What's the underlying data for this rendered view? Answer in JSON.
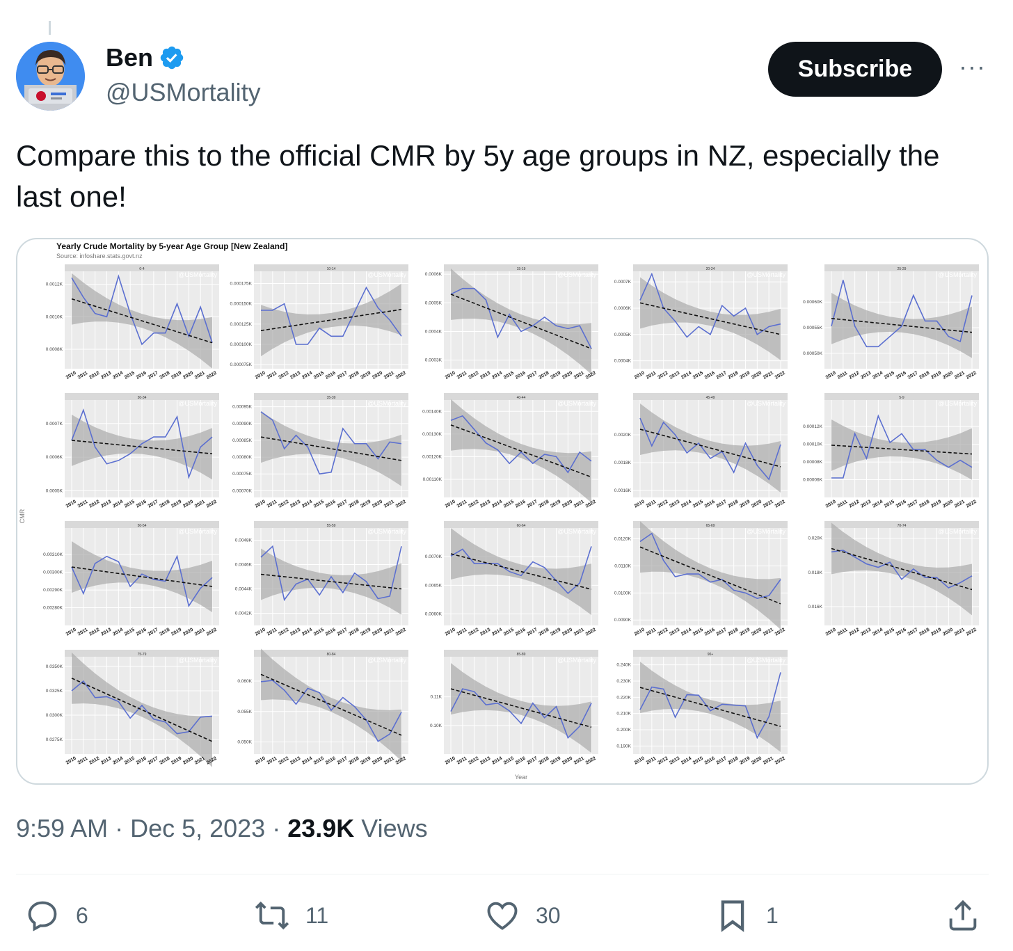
{
  "author": {
    "name": "Ben",
    "handle": "@USMortality",
    "avatar_icon": "memoji-avatar-icon",
    "verified_icon": "verified-badge-icon"
  },
  "subscribe_label": "Subscribe",
  "more_label": "···",
  "tweet_text": "Compare this to the official CMR by 5y age groups in NZ, especially the last one!",
  "media": {
    "chart_title": "Yearly Crude Mortality by 5-year Age Group [New Zealand]",
    "chart_source": "Source: infoshare.stats.govt.nz",
    "ylabel": "CMR",
    "xlabel": "Year",
    "watermark": "@USMortality"
  },
  "chart_data": {
    "type": "line",
    "title": "Yearly Crude Mortality by 5-year Age Group [New Zealand]",
    "subtitle": "Source: infoshare.stats.govt.nz",
    "xlabel": "Year",
    "ylabel": "CMR",
    "x": [
      "2010",
      "2011",
      "2012",
      "2013",
      "2014",
      "2015",
      "2016",
      "2017",
      "2018",
      "2019",
      "2020",
      "2021",
      "2022"
    ],
    "panels": [
      {
        "name": "0-4",
        "yticks": [
          "0.0008K",
          "0.0010K",
          "0.0012K"
        ],
        "ylim": [
          0.00068,
          0.00128
        ],
        "values": [
          0.00124,
          0.00112,
          0.00102,
          0.001,
          0.00125,
          0.00102,
          0.00083,
          0.0009,
          0.0009,
          0.00108,
          0.00088,
          0.00106,
          0.00084
        ],
        "trend": [
          0.00111,
          0.00084
        ]
      },
      {
        "name": "10-14",
        "yticks": [
          "0.000075K",
          "0.000100K",
          "0.000125K",
          "0.000150K",
          "0.000175K"
        ],
        "ylim": [
          7e-05,
          0.00019
        ],
        "values": [
          0.000142,
          0.000142,
          0.00015,
          0.0001,
          0.0001,
          0.00012,
          0.00011,
          0.00011,
          0.00014,
          0.00017,
          0.000145,
          0.00013,
          0.00011
        ],
        "trend": [
          0.000117,
          0.000143
        ]
      },
      {
        "name": "15-19",
        "yticks": [
          "0.0003K",
          "0.0004K",
          "0.0005K",
          "0.0006K"
        ],
        "ylim": [
          0.00027,
          0.00061
        ],
        "values": [
          0.00053,
          0.00055,
          0.00055,
          0.00051,
          0.00038,
          0.00046,
          0.0004,
          0.00042,
          0.00045,
          0.00042,
          0.00041,
          0.00042,
          0.00034
        ],
        "trend": [
          0.00053,
          0.00034
        ]
      },
      {
        "name": "20-24",
        "yticks": [
          "0.0004K",
          "0.0005K",
          "0.0006K",
          "0.0007K"
        ],
        "ylim": [
          0.00037,
          0.00074
        ],
        "values": [
          0.00063,
          0.00073,
          0.0006,
          0.00055,
          0.00049,
          0.00053,
          0.0005,
          0.00061,
          0.00057,
          0.0006,
          0.0005,
          0.00053,
          0.00054
        ],
        "trend": [
          0.00062,
          0.0005
        ]
      },
      {
        "name": "25-29",
        "yticks": [
          "0.00050K",
          "0.00055K",
          "0.00060K"
        ],
        "ylim": [
          0.00047,
          0.00066
        ],
        "values": [
          0.000553,
          0.000643,
          0.000553,
          0.000513,
          0.000513,
          0.000533,
          0.000553,
          0.000613,
          0.000563,
          0.000563,
          0.000533,
          0.000523,
          0.000613
        ],
        "trend": [
          0.000568,
          0.000541
        ]
      },
      {
        "name": "30-34",
        "yticks": [
          "0.0005K",
          "0.0006K",
          "0.0007K"
        ],
        "ylim": [
          0.00048,
          0.00077
        ],
        "values": [
          0.00065,
          0.00074,
          0.00063,
          0.00058,
          0.00059,
          0.00061,
          0.00064,
          0.00066,
          0.00066,
          0.00072,
          0.00054,
          0.00063,
          0.00066
        ],
        "trend": [
          0.00065,
          0.00061
        ]
      },
      {
        "name": "35-39",
        "yticks": [
          "0.00070K",
          "0.00075K",
          "0.00080K",
          "0.00085K",
          "0.00090K",
          "0.00095K"
        ],
        "ylim": [
          0.00068,
          0.00097
        ],
        "values": [
          0.000935,
          0.00091,
          0.000825,
          0.000865,
          0.00083,
          0.00075,
          0.000755,
          0.000885,
          0.00084,
          0.00084,
          0.000795,
          0.000845,
          0.00084
        ],
        "trend": [
          0.00086,
          0.00079
        ]
      },
      {
        "name": "40-44",
        "yticks": [
          "0.00110K",
          "0.00120K",
          "0.00130K",
          "0.00140K"
        ],
        "ylim": [
          0.00102,
          0.00145
        ],
        "values": [
          0.00136,
          0.00138,
          0.00132,
          0.00126,
          0.00123,
          0.00117,
          0.00122,
          0.00117,
          0.00121,
          0.0012,
          0.00113,
          0.00122,
          0.00118
        ],
        "trend": [
          0.00134,
          0.00111
        ]
      },
      {
        "name": "45-49",
        "yticks": [
          "0.0016K",
          "0.0018K",
          "0.0020K"
        ],
        "ylim": [
          0.00155,
          0.00225
        ],
        "values": [
          0.00212,
          0.00192,
          0.00209,
          0.002,
          0.00187,
          0.00194,
          0.00183,
          0.00188,
          0.00173,
          0.00194,
          0.00178,
          0.00168,
          0.00193
        ],
        "trend": [
          0.00204,
          0.00177
        ]
      },
      {
        "name": "5-9",
        "yticks": [
          "0.00006K",
          "0.00008K",
          "0.00010K",
          "0.00012K"
        ],
        "ylim": [
          4e-05,
          0.00015
        ],
        "values": [
          6.2e-05,
          6.2e-05,
          0.000112,
          8.4e-05,
          0.000132,
          0.000102,
          0.000112,
          9.4e-05,
          9.4e-05,
          8.2e-05,
          7.4e-05,
          8.2e-05,
          7.4e-05
        ],
        "trend": [
          9.9e-05,
          8.9e-05
        ]
      },
      {
        "name": "50-54",
        "yticks": [
          "0.00280K",
          "0.00290K",
          "0.00300K",
          "0.00310K"
        ],
        "ylim": [
          0.0027,
          0.00325
        ],
        "values": [
          0.00303,
          0.00288,
          0.00305,
          0.00309,
          0.00306,
          0.00292,
          0.00299,
          0.00296,
          0.00295,
          0.00309,
          0.00281,
          0.00291,
          0.00297
        ],
        "trend": [
          0.00303,
          0.00292
        ]
      },
      {
        "name": "55-59",
        "yticks": [
          "0.0042K",
          "0.0044K",
          "0.0046K",
          "0.0048K"
        ],
        "ylim": [
          0.0041,
          0.0049
        ],
        "values": [
          0.00466,
          0.00475,
          0.00431,
          0.00444,
          0.00448,
          0.00435,
          0.0045,
          0.00437,
          0.00453,
          0.00446,
          0.00432,
          0.00434,
          0.00475
        ],
        "trend": [
          0.00452,
          0.0044
        ]
      },
      {
        "name": "60-64",
        "yticks": [
          "0.0060K",
          "0.0065K",
          "0.0070K"
        ],
        "ylim": [
          0.0058,
          0.0075
        ],
        "values": [
          0.00701,
          0.00713,
          0.00688,
          0.00688,
          0.00688,
          0.00674,
          0.00667,
          0.00691,
          0.00681,
          0.00658,
          0.00636,
          0.00654,
          0.00718
        ],
        "trend": [
          0.00705,
          0.00643
        ]
      },
      {
        "name": "65-69",
        "yticks": [
          "0.0090K",
          "0.0100K",
          "0.0110K",
          "0.0120K"
        ],
        "ylim": [
          0.0088,
          0.0124
        ],
        "values": [
          0.0119,
          0.0122,
          0.0112,
          0.0106,
          0.0107,
          0.0107,
          0.0104,
          0.0105,
          0.0101,
          0.01,
          0.0098,
          0.0099,
          0.0105
        ],
        "trend": [
          0.0117,
          0.0096
        ]
      },
      {
        "name": "70-74",
        "yticks": [
          "0.016K",
          "0.018K",
          "0.020K"
        ],
        "ylim": [
          0.0149,
          0.0206
        ],
        "values": [
          0.0192,
          0.0193,
          0.0189,
          0.0185,
          0.0183,
          0.0186,
          0.0176,
          0.0182,
          0.0177,
          0.0177,
          0.0171,
          0.0174,
          0.0178
        ],
        "trend": [
          0.0194,
          0.017
        ]
      },
      {
        "name": "75-79",
        "yticks": [
          "0.0275K",
          "0.0300K",
          "0.0325K",
          "0.0350K"
        ],
        "ylim": [
          0.026,
          0.036
        ],
        "values": [
          0.0325,
          0.0335,
          0.0318,
          0.0319,
          0.0314,
          0.0297,
          0.031,
          0.0296,
          0.0293,
          0.0281,
          0.0283,
          0.0298,
          0.0299
        ],
        "trend": [
          0.0338,
          0.0273
        ]
      },
      {
        "name": "80-84",
        "yticks": [
          "0.050K",
          "0.055K",
          "0.060K"
        ],
        "ylim": [
          0.048,
          0.064
        ],
        "values": [
          0.0599,
          0.0601,
          0.0585,
          0.0562,
          0.0588,
          0.0581,
          0.0552,
          0.0573,
          0.0558,
          0.0536,
          0.0501,
          0.0513,
          0.0549
        ],
        "trend": [
          0.0611,
          0.0511
        ]
      },
      {
        "name": "85-89",
        "yticks": [
          "0.10K",
          "0.11K"
        ],
        "ylim": [
          0.09,
          0.124
        ],
        "values": [
          0.1049,
          0.1128,
          0.1118,
          0.1072,
          0.1078,
          0.1051,
          0.1007,
          0.1078,
          0.1027,
          0.1066,
          0.0957,
          0.0997,
          0.1078
        ],
        "trend": [
          0.1128,
          0.0994
        ]
      },
      {
        "name": "90+",
        "yticks": [
          "0.190K",
          "0.200K",
          "0.210K",
          "0.220K",
          "0.230K",
          "0.240K"
        ],
        "ylim": [
          0.185,
          0.245
        ],
        "values": [
          0.2124,
          0.2263,
          0.2251,
          0.2077,
          0.2216,
          0.2213,
          0.2117,
          0.2157,
          0.2152,
          0.2147,
          0.1951,
          0.2081,
          0.2354
        ],
        "trend": [
          0.2261,
          0.2021
        ]
      }
    ]
  },
  "timestamp": "9:59 AM · Dec 5, 2023 · ",
  "views_count": "23.9K",
  "views_label": " Views",
  "actions": {
    "reply_count": "6",
    "retweet_count": "11",
    "like_count": "30",
    "bookmark_count": "1"
  }
}
